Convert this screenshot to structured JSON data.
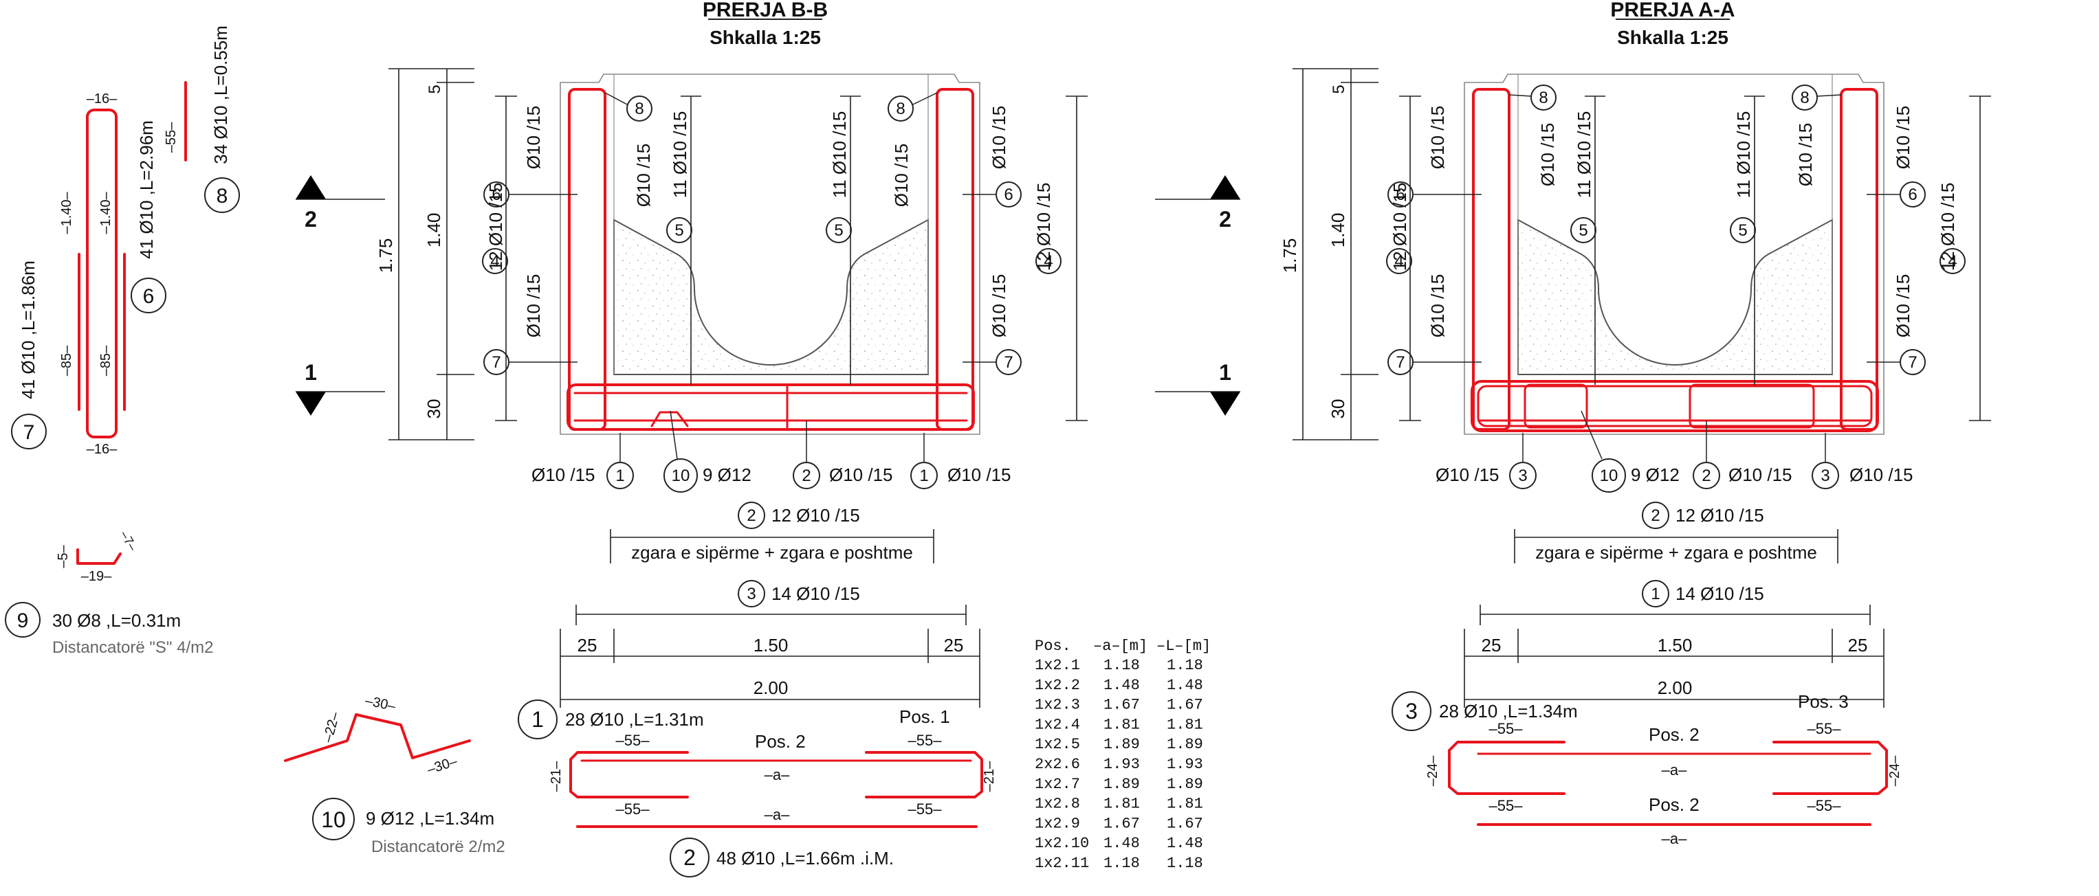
{
  "sections": {
    "bb": {
      "title": "PRERJA B-B",
      "scale": "Shkalla 1:25"
    },
    "aa": {
      "title": "PRERJA A-A",
      "scale": "Shkalla 1:25"
    }
  },
  "section_marks": {
    "upper": "2",
    "lower": "1"
  },
  "dims": {
    "d175": "1.75",
    "d140": "1.40",
    "d30": "30",
    "d5": "5",
    "d25": "25",
    "d150": "1.50",
    "d200": "2.00"
  },
  "rebar_notes": {
    "ø10_15": "Ø10 /15",
    "n12_ø10_15": "12 Ø10 /15",
    "n11_ø10_15": "11 Ø10 /15",
    "n9_ø12": "9 Ø12",
    "n14_ø10_15": "14 Ø10 /15",
    "grid_note": "zgara e sipërme + zgara e poshtme"
  },
  "positions": [
    "1",
    "2",
    "3",
    "4",
    "5",
    "6",
    "7",
    "8",
    "9",
    "10"
  ],
  "bar_schedule": {
    "b7": {
      "pos": "7",
      "desc": "41 Ø10 ,L=1.86m",
      "len1": "–1.40–",
      "len2": "–85–",
      "top": "–16–",
      "bot": "–16–"
    },
    "b6": {
      "pos": "6",
      "desc": "41 Ø10 ,L=2.96m",
      "len1": "–1.40–",
      "len2": "–85–"
    },
    "b8": {
      "pos": "8",
      "desc": "34 Ø10 ,L=0.55m",
      "len": "–55–"
    },
    "b9": {
      "pos": "9",
      "desc": "30 Ø8 ,L=0.31m",
      "note": "Distancatorë \"S\" 4/m2",
      "l1": "–5–",
      "l2": "–19–",
      "l3": "–7–"
    },
    "b10": {
      "pos": "10",
      "desc": "9 Ø12 ,L=1.34m",
      "note": "Distancatorë 2/m2",
      "l1": "–22–",
      "l2": "–30–",
      "l3": "–30–"
    },
    "b1": {
      "pos": "1",
      "desc": "28 Ø10 ,L=1.31m",
      "label": "Pos. 1"
    },
    "b2": {
      "pos": "2",
      "desc": "48 Ø10 ,L=1.66m .i.M.",
      "label": "Pos. 2"
    },
    "b3": {
      "pos": "3",
      "desc": "28 Ø10 ,L=1.34m",
      "label": "Pos. 3"
    },
    "lap": "–55–",
    "a": "–a–",
    "h21": "–21–",
    "h24": "–24–"
  },
  "table": {
    "headers": [
      "Pos.",
      "–a–[m]",
      "–L–[m]"
    ],
    "rows": [
      [
        "1x2.1",
        "1.18",
        "1.18"
      ],
      [
        "1x2.2",
        "1.48",
        "1.48"
      ],
      [
        "1x2.3",
        "1.67",
        "1.67"
      ],
      [
        "1x2.4",
        "1.81",
        "1.81"
      ],
      [
        "1x2.5",
        "1.89",
        "1.89"
      ],
      [
        "2x2.6",
        "1.93",
        "1.93"
      ],
      [
        "1x2.7",
        "1.89",
        "1.89"
      ],
      [
        "1x2.8",
        "1.81",
        "1.81"
      ],
      [
        "1x2.9",
        "1.67",
        "1.67"
      ],
      [
        "1x2.10",
        "1.48",
        "1.48"
      ],
      [
        "1x2.11",
        "1.18",
        "1.18"
      ]
    ]
  }
}
